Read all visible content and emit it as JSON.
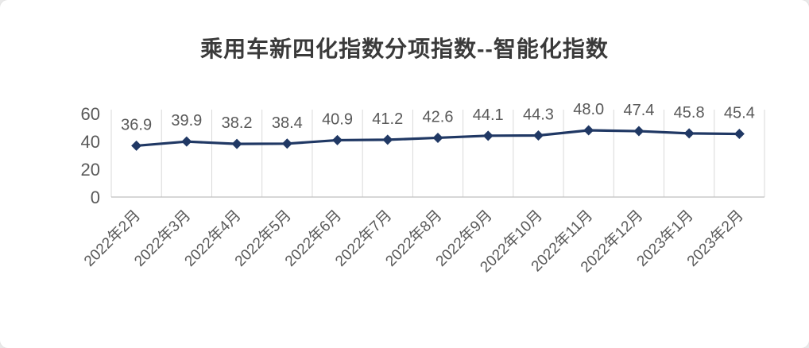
{
  "chart_data": {
    "type": "line",
    "title": "乘用车新四化指数分项指数--智能化指数",
    "categories": [
      "2022年2月",
      "2022年3月",
      "2022年4月",
      "2022年5月",
      "2022年6月",
      "2022年7月",
      "2022年8月",
      "2022年9月",
      "2022年10月",
      "2022年11月",
      "2022年12月",
      "2023年1月",
      "2023年2月"
    ],
    "values": [
      36.9,
      39.9,
      38.2,
      38.4,
      40.9,
      41.2,
      42.6,
      44.1,
      44.3,
      48.0,
      47.4,
      45.8,
      45.4
    ],
    "data_labels": [
      "36.9",
      "39.9",
      "38.2",
      "38.4",
      "40.9",
      "41.2",
      "42.6",
      "44.1",
      "44.3",
      "48.0",
      "47.4",
      "45.8",
      "45.4"
    ],
    "xlabel": "",
    "ylabel": "",
    "ylim": [
      0,
      60
    ],
    "yticks": [
      0,
      20,
      40,
      60
    ],
    "grid": "vertical",
    "legend": "none",
    "line_color": "#203864",
    "marker": "diamond",
    "label_color": "#595959",
    "axis_text_color": "#595959",
    "gridline_color": "#d9d9d9",
    "axis_line_color": "#bfbfbf"
  }
}
